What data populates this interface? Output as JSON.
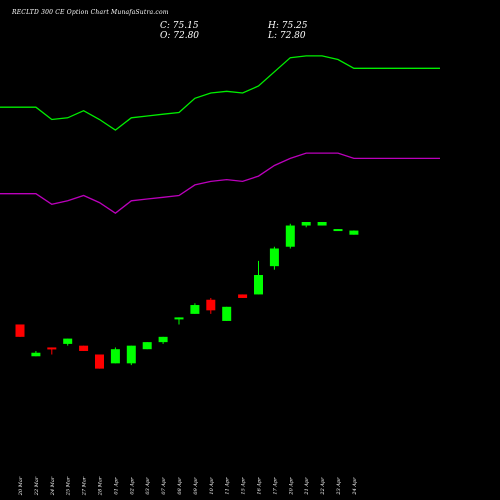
{
  "header": {
    "title": "RECLTD 300  CE Option  Chart MunafaSutra.com",
    "close": "C: 75.15",
    "open": "O: 72.80",
    "high": "H: 75.25",
    "low": "L: 72.80"
  },
  "colors": {
    "background": "#000000",
    "up": "#00ff00",
    "down": "#ff0000",
    "band_upper": "#00ee00",
    "band_lower": "#bb00bb",
    "text": "#ffffff"
  },
  "chart_data": {
    "type": "candlestick",
    "categories": [
      "20 Mar",
      "22 Mar",
      "24 Mar",
      "25 Mar",
      "27 Mar",
      "28 Mar",
      "01 Apr",
      "02 Apr",
      "03 Apr",
      "07 Apr",
      "08 Apr",
      "09 Apr",
      "10 Apr",
      "11 Apr",
      "15 Apr",
      "16 Apr",
      "17 Apr",
      "20 Apr",
      "21 Apr",
      "22 Apr",
      "23 Apr",
      "24 Apr"
    ],
    "candles": [
      {
        "o": 22,
        "c": 15,
        "h": 22,
        "l": 15
      },
      {
        "o": 4,
        "c": 6,
        "h": 7,
        "l": 4
      },
      {
        "o": 9,
        "c": 8,
        "h": 9,
        "l": 5
      },
      {
        "o": 11,
        "c": 14,
        "h": 14,
        "l": 10
      },
      {
        "o": 10,
        "c": 7,
        "h": 10,
        "l": 7
      },
      {
        "o": 5,
        "c": -3,
        "h": 5,
        "l": -3
      },
      {
        "o": 0,
        "c": 8,
        "h": 9,
        "l": 0
      },
      {
        "o": 0,
        "c": 10,
        "h": 10,
        "l": -1
      },
      {
        "o": 8,
        "c": 12,
        "h": 12,
        "l": 8
      },
      {
        "o": 12,
        "c": 15,
        "h": 15,
        "l": 11
      },
      {
        "o": 25,
        "c": 26,
        "h": 26,
        "l": 22
      },
      {
        "o": 28,
        "c": 33,
        "h": 34,
        "l": 28
      },
      {
        "o": 36,
        "c": 30,
        "h": 37,
        "l": 28
      },
      {
        "o": 24,
        "c": 32,
        "h": 32,
        "l": 24
      },
      {
        "o": 39,
        "c": 37,
        "h": 39,
        "l": 37
      },
      {
        "o": 39,
        "c": 50,
        "h": 58,
        "l": 39
      },
      {
        "o": 55,
        "c": 65,
        "h": 66,
        "l": 53
      },
      {
        "o": 66,
        "c": 78,
        "h": 79,
        "l": 65
      },
      {
        "o": 78,
        "c": 80,
        "h": 80,
        "l": 77
      },
      {
        "o": 78,
        "c": 80,
        "h": 80,
        "l": 78
      },
      {
        "o": 75,
        "c": 76,
        "h": 76,
        "l": 75
      },
      {
        "o": 72.8,
        "c": 75.15,
        "h": 75.25,
        "l": 72.8
      }
    ],
    "upper_band": [
      145,
      145,
      138,
      139,
      143,
      138,
      132,
      139,
      140,
      141,
      142,
      150,
      153,
      154,
      153,
      157,
      165,
      173,
      174,
      174,
      172,
      167
    ],
    "lower_band": [
      96,
      96,
      90,
      92,
      95,
      91,
      85,
      92,
      93,
      94,
      95,
      101,
      103,
      104,
      103,
      106,
      112,
      116,
      119,
      119,
      119,
      116
    ],
    "ylim": [
      -40,
      200
    ]
  }
}
